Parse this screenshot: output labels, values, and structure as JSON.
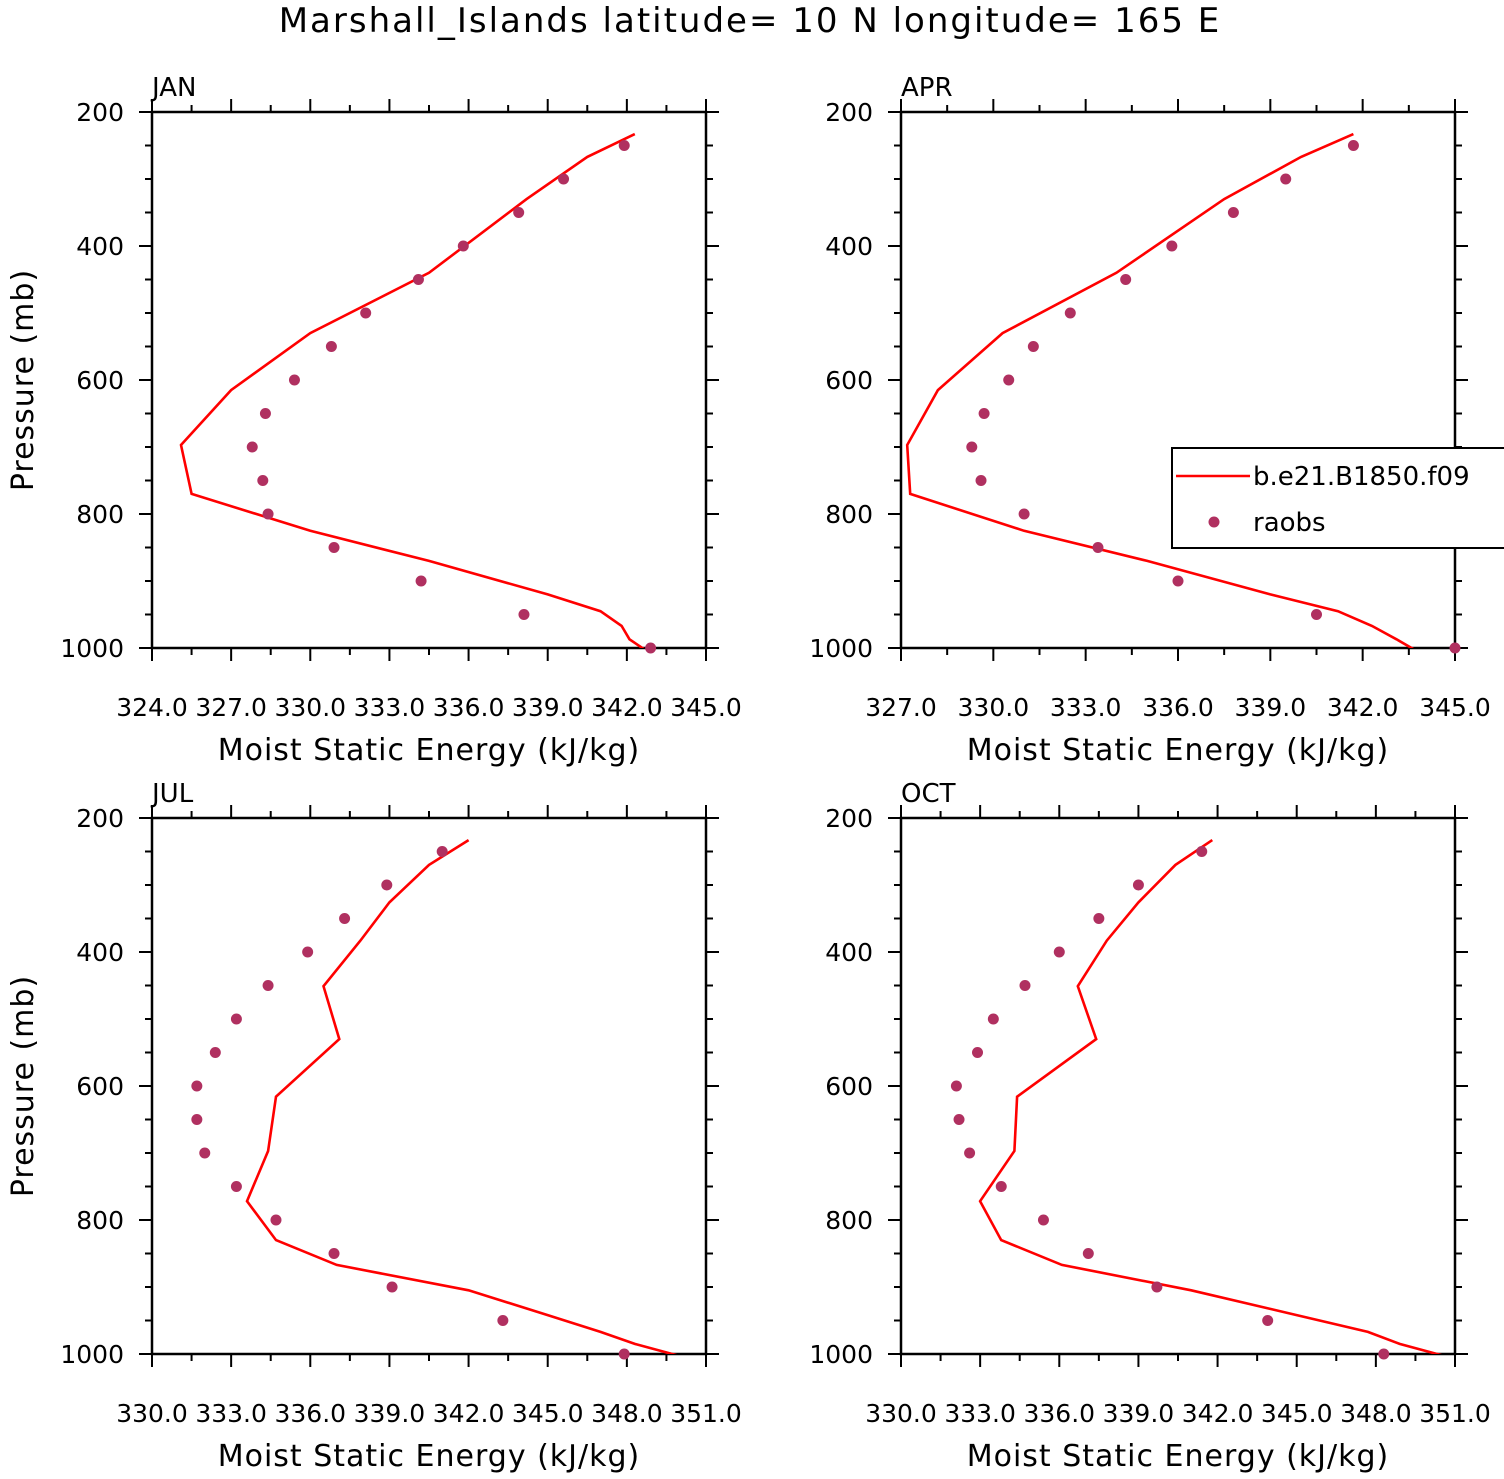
{
  "title": "Marshall_Islands  latitude= 10 N longitude= 165 E",
  "legend": {
    "items": [
      {
        "label": "b.e21.B1850.f09",
        "color": "#ff0000",
        "kind": "line"
      },
      {
        "label": "raobs",
        "color": "#b03060",
        "kind": "dot"
      }
    ]
  },
  "chart_data": [
    {
      "type": "line",
      "panel": "JAN",
      "xlabel": "Moist Static Energy (kJ/kg)",
      "ylabel": "Pressure (mb)",
      "xlim": [
        324.0,
        345.0
      ],
      "ylim": [
        1000,
        200
      ],
      "xticks": [
        324.0,
        327.0,
        330.0,
        333.0,
        336.0,
        339.0,
        342.0,
        345.0
      ],
      "xtick_labels": [
        "324.0",
        "327.0",
        "330.0",
        "333.0",
        "336.0",
        "339.0",
        "342.0",
        "345.0"
      ],
      "yticks": [
        200,
        400,
        600,
        800,
        1000
      ],
      "ytick_labels": [
        "200",
        "400",
        "600",
        "800",
        "1000"
      ],
      "grid": false,
      "series": [
        {
          "name": "b.e21.B1850.f09",
          "kind": "line",
          "color": "#ff0000",
          "x": [
            342.3,
            340.5,
            338.2,
            334.5,
            330.0,
            327.0,
            325.1,
            325.5,
            330.0,
            334.5,
            339.0,
            341.0,
            341.8,
            342.1,
            342.7
          ],
          "y": [
            233,
            267,
            330,
            440,
            530,
            615,
            697,
            770,
            825,
            870,
            920,
            945,
            967,
            987,
            1003
          ]
        },
        {
          "name": "raobs",
          "kind": "scatter",
          "color": "#b03060",
          "x": [
            341.9,
            339.6,
            337.9,
            335.8,
            334.1,
            332.1,
            330.8,
            329.4,
            328.3,
            327.8,
            328.2,
            328.4,
            330.9,
            334.2,
            338.1,
            342.9
          ],
          "y": [
            250,
            300,
            350,
            400,
            450,
            500,
            550,
            600,
            650,
            700,
            750,
            800,
            850,
            900,
            950,
            1000
          ]
        }
      ]
    },
    {
      "type": "line",
      "panel": "APR",
      "xlabel": "Moist Static Energy (kJ/kg)",
      "ylabel": "",
      "xlim": [
        327.0,
        345.0
      ],
      "ylim": [
        1000,
        200
      ],
      "xticks": [
        327.0,
        330.0,
        333.0,
        336.0,
        339.0,
        342.0,
        345.0
      ],
      "xtick_labels": [
        "327.0",
        "330.0",
        "333.0",
        "336.0",
        "339.0",
        "342.0",
        "345.0"
      ],
      "yticks": [
        200,
        400,
        600,
        800,
        1000
      ],
      "ytick_labels": [
        "200",
        "400",
        "600",
        "800",
        "1000"
      ],
      "grid": false,
      "series": [
        {
          "name": "b.e21.B1850.f09",
          "kind": "line",
          "color": "#ff0000",
          "x": [
            341.7,
            340.0,
            337.5,
            334.0,
            330.3,
            328.2,
            327.2,
            327.3,
            331.0,
            335.0,
            339.0,
            341.2,
            342.3,
            343.1,
            343.7
          ],
          "y": [
            233,
            267,
            330,
            440,
            530,
            615,
            697,
            770,
            825,
            870,
            920,
            945,
            967,
            987,
            1003
          ]
        },
        {
          "name": "raobs",
          "kind": "scatter",
          "color": "#b03060",
          "x": [
            341.7,
            339.5,
            337.8,
            335.8,
            334.3,
            332.5,
            331.3,
            330.5,
            329.7,
            329.3,
            329.6,
            331.0,
            333.4,
            336.0,
            340.5,
            345.0
          ],
          "y": [
            250,
            300,
            350,
            400,
            450,
            500,
            550,
            600,
            650,
            700,
            750,
            800,
            850,
            900,
            950,
            1000
          ]
        }
      ]
    },
    {
      "type": "line",
      "panel": "JUL",
      "xlabel": "Moist Static Energy (kJ/kg)",
      "ylabel": "Pressure (mb)",
      "xlim": [
        330.0,
        351.0
      ],
      "ylim": [
        1000,
        200
      ],
      "xticks": [
        330.0,
        333.0,
        336.0,
        339.0,
        342.0,
        345.0,
        348.0,
        351.0
      ],
      "xtick_labels": [
        "330.0",
        "333.0",
        "336.0",
        "339.0",
        "342.0",
        "345.0",
        "348.0",
        "351.0"
      ],
      "yticks": [
        200,
        400,
        600,
        800,
        1000
      ],
      "ytick_labels": [
        "200",
        "400",
        "600",
        "800",
        "1000"
      ],
      "grid": false,
      "series": [
        {
          "name": "b.e21.B1850.f09",
          "kind": "line",
          "color": "#ff0000",
          "x": [
            342.0,
            340.5,
            339.0,
            337.9,
            336.5,
            337.1,
            334.7,
            334.4,
            333.6,
            334.7,
            337.0,
            342.0,
            345.0,
            347.0,
            348.3,
            350.0
          ],
          "y": [
            233,
            270,
            326,
            383,
            451,
            530,
            616,
            697,
            772,
            830,
            867,
            905,
            942,
            967,
            985,
            1003
          ]
        },
        {
          "name": "raobs",
          "kind": "scatter",
          "color": "#b03060",
          "x": [
            341.0,
            338.9,
            337.3,
            335.9,
            334.4,
            333.2,
            332.4,
            331.7,
            331.7,
            332.0,
            333.2,
            334.7,
            336.9,
            339.1,
            343.3,
            347.9
          ],
          "y": [
            250,
            300,
            350,
            400,
            450,
            500,
            550,
            600,
            650,
            700,
            750,
            800,
            850,
            900,
            950,
            1000
          ]
        }
      ]
    },
    {
      "type": "line",
      "panel": "OCT",
      "xlabel": "Moist Static Energy (kJ/kg)",
      "ylabel": "",
      "xlim": [
        330.0,
        351.0
      ],
      "ylim": [
        1000,
        200
      ],
      "xticks": [
        330.0,
        333.0,
        336.0,
        339.0,
        342.0,
        345.0,
        348.0,
        351.0
      ],
      "xtick_labels": [
        "330.0",
        "333.0",
        "336.0",
        "339.0",
        "342.0",
        "345.0",
        "348.0",
        "351.0"
      ],
      "yticks": [
        200,
        400,
        600,
        800,
        1000
      ],
      "ytick_labels": [
        "200",
        "400",
        "600",
        "800",
        "1000"
      ],
      "grid": false,
      "series": [
        {
          "name": "b.e21.B1850.f09",
          "kind": "line",
          "color": "#ff0000",
          "x": [
            341.8,
            340.4,
            339.0,
            337.8,
            336.7,
            337.4,
            334.4,
            334.3,
            333.0,
            333.8,
            336.1,
            341.0,
            345.0,
            347.7,
            348.9,
            350.6
          ],
          "y": [
            233,
            270,
            326,
            383,
            451,
            530,
            616,
            697,
            772,
            830,
            867,
            905,
            942,
            967,
            985,
            1003
          ]
        },
        {
          "name": "raobs",
          "kind": "scatter",
          "color": "#b03060",
          "x": [
            341.4,
            339.0,
            337.5,
            336.0,
            334.7,
            333.5,
            332.9,
            332.1,
            332.2,
            332.6,
            333.8,
            335.4,
            337.1,
            339.7,
            343.9,
            348.3
          ],
          "y": [
            250,
            300,
            350,
            400,
            450,
            500,
            550,
            600,
            650,
            700,
            750,
            800,
            850,
            900,
            950,
            1000
          ]
        }
      ]
    }
  ]
}
